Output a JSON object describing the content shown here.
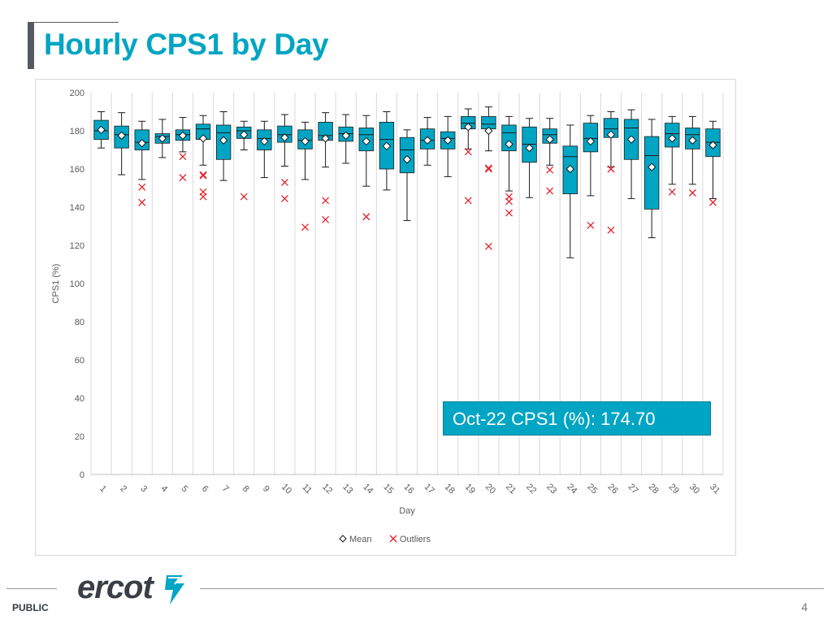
{
  "slide": {
    "title": "Hourly CPS1 by Day",
    "callout": "Oct-22 CPS1 (%): 174.70",
    "footer_label": "PUBLIC",
    "page_number": "4",
    "logo_text": "ercot"
  },
  "colors": {
    "title": "#00a5c4",
    "box_fill": "#00a5c4",
    "box_stroke": "#1a1a1a",
    "outlier": "#e8202a",
    "grid": "#d9d9d9"
  },
  "chart_data": {
    "type": "box",
    "xlabel": "Day",
    "ylabel": "CPS1 (%)",
    "ylim": [
      0,
      200
    ],
    "yticks": [
      0,
      20,
      40,
      60,
      80,
      100,
      120,
      140,
      160,
      180,
      200
    ],
    "grid": "vertical",
    "legend": {
      "position": "bottom",
      "items": [
        "Mean",
        "Outliers"
      ]
    },
    "categories": [
      "1",
      "2",
      "3",
      "4",
      "5",
      "6",
      "7",
      "8",
      "9",
      "10",
      "11",
      "12",
      "13",
      "14",
      "15",
      "16",
      "17",
      "18",
      "19",
      "20",
      "21",
      "22",
      "23",
      "24",
      "25",
      "26",
      "27",
      "28",
      "29",
      "30",
      "31"
    ],
    "boxes": [
      {
        "day": "1",
        "min": 171,
        "q1": 175.5,
        "median": 180,
        "q3": 185.5,
        "max": 190,
        "mean": 180.5,
        "outliers": []
      },
      {
        "day": "2",
        "min": 157,
        "q1": 171,
        "median": 178,
        "q3": 182.5,
        "max": 189.5,
        "mean": 177.5,
        "outliers": []
      },
      {
        "day": "3",
        "min": 154.5,
        "q1": 170,
        "median": 174,
        "q3": 180.5,
        "max": 185,
        "mean": 173.5,
        "outliers": [
          150.5,
          142.5
        ]
      },
      {
        "day": "4",
        "min": 166,
        "q1": 173.5,
        "median": 177,
        "q3": 178.5,
        "max": 186,
        "mean": 176,
        "outliers": []
      },
      {
        "day": "5",
        "min": 169,
        "q1": 175,
        "median": 178,
        "q3": 180.5,
        "max": 187,
        "mean": 177.5,
        "outliers": [
          166.5,
          155.5
        ]
      },
      {
        "day": "6",
        "min": 162,
        "q1": 175.5,
        "median": 181,
        "q3": 183.5,
        "max": 188,
        "mean": 176,
        "outliers": [
          157,
          156.5,
          148,
          145.5
        ]
      },
      {
        "day": "7",
        "min": 154,
        "q1": 165,
        "median": 179,
        "q3": 183,
        "max": 190,
        "mean": 175,
        "outliers": []
      },
      {
        "day": "8",
        "min": 170,
        "q1": 176,
        "median": 180,
        "q3": 182,
        "max": 185,
        "mean": 178,
        "outliers": [
          145.5
        ]
      },
      {
        "day": "9",
        "min": 155.5,
        "q1": 170,
        "median": 176,
        "q3": 180.5,
        "max": 185,
        "mean": 174.5,
        "outliers": []
      },
      {
        "day": "10",
        "min": 161.5,
        "q1": 174,
        "median": 178,
        "q3": 182.5,
        "max": 188.5,
        "mean": 176.5,
        "outliers": [
          153,
          144.5
        ]
      },
      {
        "day": "11",
        "min": 154.5,
        "q1": 170.5,
        "median": 175,
        "q3": 180.5,
        "max": 184.5,
        "mean": 174.5,
        "outliers": [
          129.5
        ]
      },
      {
        "day": "12",
        "min": 161,
        "q1": 175,
        "median": 177.5,
        "q3": 184.5,
        "max": 189.5,
        "mean": 176,
        "outliers": [
          143.5,
          133.5
        ]
      },
      {
        "day": "13",
        "min": 163,
        "q1": 174.5,
        "median": 178.5,
        "q3": 182,
        "max": 188.5,
        "mean": 177.5,
        "outliers": []
      },
      {
        "day": "14",
        "min": 151,
        "q1": 169.5,
        "median": 178,
        "q3": 181.5,
        "max": 188,
        "mean": 174.5,
        "outliers": [
          135
        ]
      },
      {
        "day": "15",
        "min": 149,
        "q1": 160,
        "median": 175.5,
        "q3": 184.5,
        "max": 190,
        "mean": 172,
        "outliers": []
      },
      {
        "day": "16",
        "min": 133,
        "q1": 158,
        "median": 170,
        "q3": 176.5,
        "max": 180.5,
        "mean": 165,
        "outliers": []
      },
      {
        "day": "17",
        "min": 162,
        "q1": 170.5,
        "median": 175,
        "q3": 181,
        "max": 187,
        "mean": 175,
        "outliers": []
      },
      {
        "day": "18",
        "min": 156,
        "q1": 170.5,
        "median": 176,
        "q3": 179.5,
        "max": 187.5,
        "mean": 175,
        "outliers": []
      },
      {
        "day": "19",
        "min": 170.5,
        "q1": 181,
        "median": 184,
        "q3": 187.5,
        "max": 191.5,
        "mean": 182,
        "outliers": [
          169,
          143.5
        ]
      },
      {
        "day": "20",
        "min": 169.5,
        "q1": 181,
        "median": 183.5,
        "q3": 187.5,
        "max": 192.5,
        "mean": 180,
        "outliers": [
          160.5,
          160,
          119.5
        ]
      },
      {
        "day": "21",
        "min": 148.5,
        "q1": 169.5,
        "median": 179,
        "q3": 183,
        "max": 187.5,
        "mean": 173,
        "outliers": [
          145.5,
          143,
          137
        ]
      },
      {
        "day": "22",
        "min": 145,
        "q1": 163.5,
        "median": 173,
        "q3": 182,
        "max": 186.5,
        "mean": 171,
        "outliers": []
      },
      {
        "day": "23",
        "min": 162,
        "q1": 173.5,
        "median": 178,
        "q3": 181,
        "max": 186.5,
        "mean": 175.5,
        "outliers": [
          159.5,
          148.5
        ]
      },
      {
        "day": "24",
        "min": 113.5,
        "q1": 147,
        "median": 166.5,
        "q3": 172,
        "max": 183,
        "mean": 160,
        "outliers": []
      },
      {
        "day": "25",
        "min": 146,
        "q1": 169,
        "median": 176,
        "q3": 184,
        "max": 188,
        "mean": 174.5,
        "outliers": [
          130.5
        ]
      },
      {
        "day": "26",
        "min": 161,
        "q1": 176.5,
        "median": 181,
        "q3": 186.5,
        "max": 190,
        "mean": 178,
        "outliers": [
          160,
          128
        ]
      },
      {
        "day": "27",
        "min": 144.5,
        "q1": 165,
        "median": 181.5,
        "q3": 186,
        "max": 191,
        "mean": 175.5,
        "outliers": []
      },
      {
        "day": "28",
        "min": 124,
        "q1": 139,
        "median": 167,
        "q3": 177,
        "max": 186,
        "mean": 161,
        "outliers": []
      },
      {
        "day": "29",
        "min": 152,
        "q1": 171.5,
        "median": 178.5,
        "q3": 184,
        "max": 187.5,
        "mean": 176,
        "outliers": [
          148
        ]
      },
      {
        "day": "30",
        "min": 152,
        "q1": 170.5,
        "median": 178,
        "q3": 181.5,
        "max": 187.5,
        "mean": 175,
        "outliers": [
          147.5
        ]
      },
      {
        "day": "31",
        "min": 144.5,
        "q1": 166.5,
        "median": 174,
        "q3": 181,
        "max": 185,
        "mean": 172.5,
        "outliers": [
          142.5
        ]
      }
    ]
  }
}
